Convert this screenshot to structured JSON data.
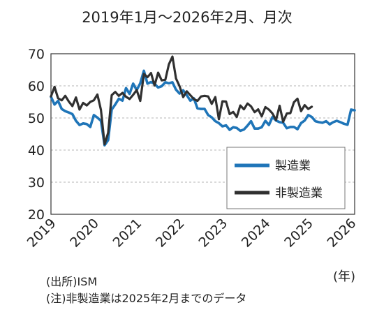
{
  "chart_data": {
    "type": "line",
    "title": "2019年1月～2026年2月、月次",
    "xlabel": "",
    "ylabel": "",
    "ylim": [
      20,
      70
    ],
    "y_ticks": [
      "70",
      "60",
      "50",
      "40",
      "30",
      "20"
    ],
    "x_ticks": [
      "2019",
      "2020",
      "2021",
      "2022",
      "2023",
      "2024",
      "2025",
      "2026"
    ],
    "x_unit": "(年)",
    "grid": true,
    "legend_position": "bottom-right",
    "source_note": "(出所)ISM",
    "footnote": "(注)非製造業は2025年2月までのデータ",
    "series": [
      {
        "name": "製造業",
        "color": "#1f75b8",
        "start": "2019-01",
        "values": [
          56.6,
          54.2,
          55.3,
          52.8,
          52.1,
          51.7,
          51.2,
          49.1,
          47.8,
          48.3,
          48.1,
          47.2,
          50.9,
          50.1,
          49.1,
          41.5,
          43.1,
          52.6,
          54.2,
          56.0,
          55.4,
          59.3,
          57.5,
          60.7,
          58.7,
          60.8,
          64.7,
          60.7,
          61.2,
          60.6,
          59.5,
          59.9,
          61.1,
          60.8,
          61.1,
          58.8,
          57.6,
          58.6,
          57.1,
          55.4,
          56.1,
          53.0,
          52.8,
          52.8,
          50.9,
          50.2,
          49.0,
          48.4,
          47.4,
          47.7,
          46.3,
          47.1,
          46.9,
          46.0,
          46.4,
          47.6,
          49.0,
          46.7,
          46.7,
          47.1,
          49.1,
          47.8,
          50.3,
          49.2,
          48.7,
          48.5,
          46.8,
          47.2,
          47.2,
          46.5,
          48.4,
          49.2,
          50.9,
          50.3,
          49.0,
          48.7,
          48.5,
          49.0,
          48.0,
          48.7,
          49.1,
          48.7,
          48.2,
          47.9,
          52.6,
          52.4
        ]
      },
      {
        "name": "非製造業",
        "color": "#303030",
        "start": "2019-01",
        "values": [
          56.7,
          59.7,
          56.1,
          55.5,
          56.9,
          55.1,
          53.7,
          56.4,
          52.6,
          54.7,
          53.9,
          55.0,
          55.5,
          57.3,
          52.5,
          41.8,
          45.4,
          57.1,
          58.1,
          56.9,
          57.8,
          56.6,
          55.9,
          57.2,
          58.7,
          55.3,
          63.7,
          62.7,
          64.0,
          60.1,
          64.1,
          61.7,
          61.9,
          66.7,
          69.1,
          62.3,
          59.9,
          56.5,
          58.3,
          57.1,
          55.9,
          55.3,
          56.7,
          56.9,
          56.7,
          54.4,
          56.5,
          49.6,
          55.2,
          55.1,
          51.2,
          51.9,
          50.3,
          53.9,
          52.7,
          54.5,
          53.6,
          51.8,
          52.7,
          50.5,
          53.4,
          52.6,
          51.4,
          49.4,
          53.8,
          48.8,
          51.4,
          51.5,
          54.9,
          56.0,
          52.1,
          54.0,
          52.8,
          53.5
        ]
      }
    ]
  }
}
